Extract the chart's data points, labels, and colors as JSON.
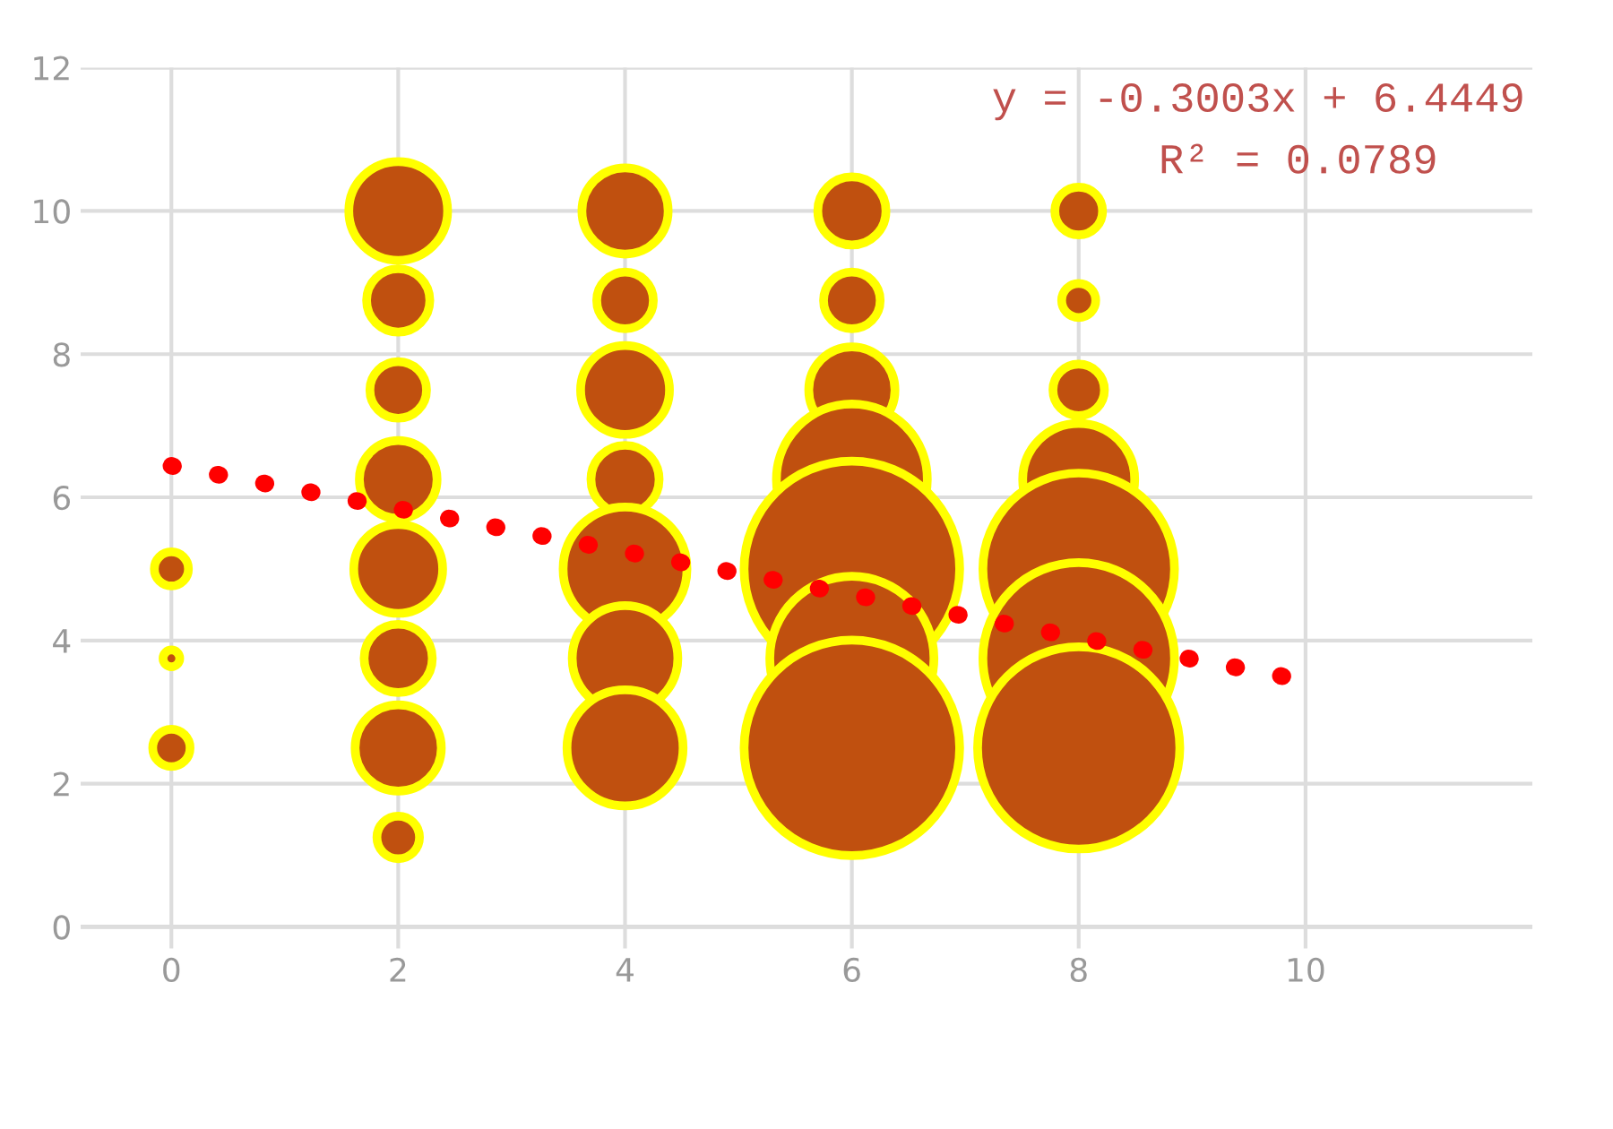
{
  "chart_data": {
    "type": "bubble",
    "xlim": [
      -0.8,
      12
    ],
    "ylim": [
      -0.3,
      12
    ],
    "xticks": [
      0,
      2,
      4,
      6,
      8,
      10
    ],
    "yticks": [
      0,
      2,
      4,
      6,
      8,
      10,
      12
    ],
    "grid": true,
    "series": [
      {
        "color": "#c0500f",
        "x": [
          0,
          0,
          0,
          2,
          2,
          2,
          2,
          2,
          2,
          2,
          2,
          4,
          4,
          4,
          4,
          4,
          4,
          4,
          6,
          6,
          6,
          6,
          6,
          6,
          6,
          8,
          8,
          8,
          8,
          8,
          8,
          8
        ],
        "values": [
          5,
          3.75,
          2.5,
          10,
          8.75,
          7.5,
          6.25,
          5,
          3.75,
          2.5,
          1.25,
          10,
          8.75,
          7.5,
          6.25,
          5,
          3.75,
          2.5,
          10,
          8.75,
          7.5,
          6.25,
          5,
          3.75,
          2.5,
          10,
          8.75,
          7.5,
          6.25,
          5,
          3.75,
          2.5
        ],
        "sizes": [
          0.025,
          0.006,
          0.03,
          0.21,
          0.086,
          0.069,
          0.13,
          0.17,
          0.1,
          0.16,
          0.039,
          0.16,
          0.069,
          0.17,
          0.1,
          0.33,
          0.24,
          0.29,
          0.1,
          0.069,
          0.16,
          0.49,
          1,
          0.58,
          1,
          0.049,
          0.025,
          0.057,
          0.27,
          0.79,
          0.79,
          0.88
        ]
      },
      {
        "type": "line",
        "color": "#ff0000",
        "line_style": "dotted",
        "x": [
          0,
          9.8
        ],
        "values": [
          6.44,
          3.5
        ]
      }
    ],
    "annotations": [
      "y = -0.3003x + 6.4449",
      "R² = 0.0789"
    ]
  }
}
